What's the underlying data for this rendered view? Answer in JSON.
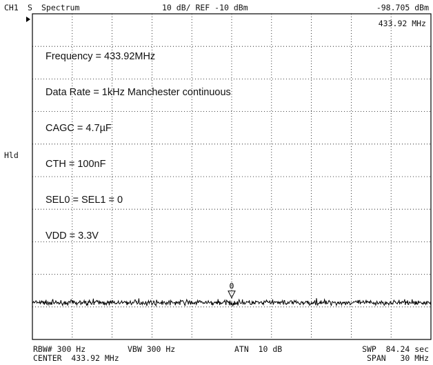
{
  "header": {
    "channel": "CH1",
    "channel_mode": "S",
    "mode_label": "Spectrum",
    "scale_ref": "10 dB/ REF -10 dBm",
    "marker_level": "-98.705 dBm"
  },
  "marker": {
    "frequency": "433.92 MHz",
    "id": "0"
  },
  "side_label": "Hld",
  "notes": [
    "Frequency = 433.92MHz",
    "Data Rate = 1kHz Manchester continuous",
    "CAGC = 4.7µF",
    "CTH = 100nF",
    "SEL0 = SEL1 = 0",
    "VDD = 3.3V"
  ],
  "footer": {
    "rbw": "RBW# 300 Hz",
    "vbw": "VBW 300 Hz",
    "atn": "ATN  10 dB",
    "swp": "SWP  84.24 sec",
    "center": "CENTER  433.92 MHz",
    "span": "SPAN   30 MHz"
  },
  "chart_data": {
    "type": "line",
    "x_unit": "MHz",
    "y_unit": "dBm",
    "xlim": [
      418.92,
      448.92
    ],
    "ylim": [
      -110,
      -10
    ],
    "grid": true,
    "grid_divisions": {
      "x": 10,
      "y": 10
    },
    "series": [
      {
        "noise_floor_dbm": -98.7,
        "noise_peak_to_peak_db": 1.6
      }
    ],
    "marker": {
      "x": 433.92,
      "y": -98.705
    }
  }
}
